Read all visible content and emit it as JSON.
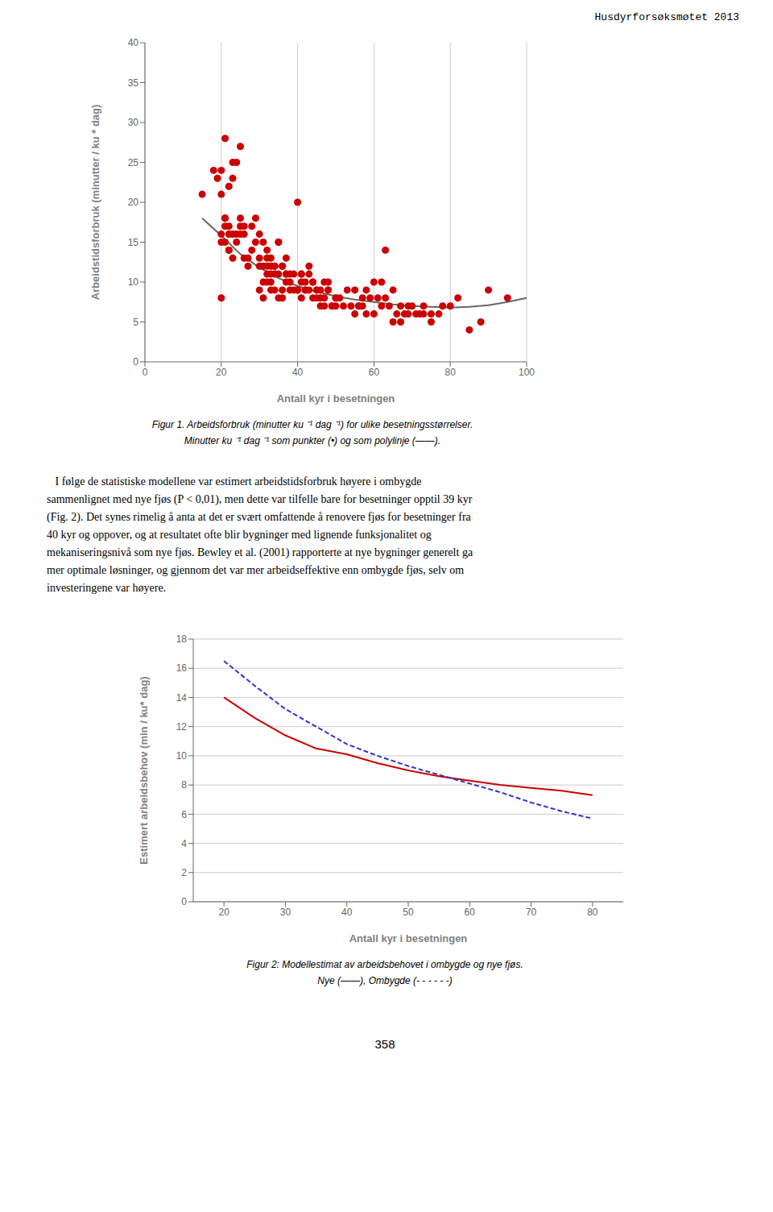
{
  "chart_data": [
    {
      "type": "scatter",
      "x_label": "Antall kyr i besetningen",
      "y_label": "Arbeidstidsforbruk  (minutter / ku * dag)",
      "xlim": [
        0,
        100
      ],
      "ylim": [
        0,
        40
      ],
      "xticks": [
        0,
        20,
        40,
        60,
        80,
        100
      ],
      "yticks": [
        0,
        5,
        10,
        15,
        20,
        25,
        30,
        35,
        40
      ],
      "grid": "x",
      "annotations": [
        "Husdyrforsøksmøtet 2013",
        "Figur 1. Arbeidsforbruk (minutter ku ⁻¹ dag ⁻¹) for ulike besetningsstørrelser.",
        "Minutter ku ⁻¹ dag ⁻¹ som punkter (•) og som polylinje (——).",
        "   I følge de statistiske modellene var estimert arbeidstidsforbruk høyere i ombygde",
        "sammenlignet med nye fjøs (P < 0,01), men dette var tilfelle bare for besetninger opptil 39 kyr",
        "(Fig. 2). Det synes rimelig å anta at det er svært omfattende å renovere fjøs for besetninger fra",
        "40 kyr og oppover, og at resultatet ofte blir bygninger med lignende funksjonalitet og",
        "mekaniseringsnivå som nye fjøs. Bewley et al. (2001) rapporterte at nye bygninger generelt ga",
        "mer optimale løsninger, og gjennom det var mer arbeidseffektive enn ombygde fjøs, selv om",
        "investeringene var høyere."
      ],
      "series": [
        {
          "type": "scatter",
          "marker": "o",
          "color": "#cc0000",
          "x": [
            15,
            18,
            19,
            20,
            20,
            20,
            20,
            21,
            21,
            21,
            22,
            22,
            22,
            23,
            23,
            23,
            24,
            25,
            25,
            26,
            20,
            21,
            21,
            22,
            22,
            22,
            23,
            23,
            24,
            24,
            25,
            25,
            26,
            26,
            27,
            27,
            28,
            28,
            29,
            29,
            30,
            30,
            30,
            31,
            31,
            32,
            32,
            32,
            33,
            33,
            33,
            34,
            34,
            35,
            35,
            36,
            36,
            37,
            37,
            38,
            30,
            31,
            31,
            32,
            32,
            33,
            33,
            34,
            34,
            35,
            35,
            36,
            36,
            37,
            37,
            38,
            38,
            39,
            39,
            40,
            40,
            41,
            41,
            42,
            42,
            43,
            43,
            44,
            44,
            45,
            45,
            46,
            46,
            47,
            47,
            48,
            48,
            49,
            50,
            50,
            40,
            41,
            41,
            42,
            43,
            44,
            45,
            46,
            47,
            48,
            49,
            50,
            51,
            52,
            53,
            54,
            55,
            56,
            57,
            58,
            55,
            56,
            57,
            58,
            59,
            60,
            61,
            62,
            63,
            64,
            65,
            66,
            67,
            68,
            69,
            70,
            72,
            73,
            75,
            77,
            60,
            62,
            63,
            65,
            67,
            69,
            71,
            73,
            75,
            78,
            80,
            82,
            85,
            88,
            90,
            95
          ],
          "values": [
            21,
            24,
            23,
            24,
            16,
            15,
            21,
            17,
            18,
            28,
            17,
            16,
            22,
            23,
            25,
            16,
            25,
            27,
            16,
            17,
            8,
            18,
            15,
            14,
            16,
            14,
            13,
            16,
            16,
            15,
            17,
            18,
            13,
            16,
            13,
            12,
            14,
            17,
            15,
            18,
            12,
            9,
            13,
            15,
            8,
            12,
            14,
            10,
            9,
            13,
            11,
            12,
            11,
            15,
            8,
            9,
            12,
            11,
            13,
            11,
            16,
            10,
            12,
            11,
            13,
            12,
            10,
            12,
            9,
            11,
            15,
            12,
            8,
            11,
            10,
            10,
            9,
            9,
            11,
            20,
            9,
            11,
            10,
            10,
            9,
            11,
            12,
            10,
            8,
            9,
            8,
            7,
            9,
            10,
            8,
            9,
            10,
            7,
            8,
            7,
            9,
            8,
            11,
            9,
            9,
            10,
            9,
            8,
            7,
            9,
            7,
            8,
            8,
            7,
            9,
            7,
            6,
            7,
            8,
            6,
            9,
            7,
            7,
            9,
            8,
            6,
            8,
            7,
            8,
            7,
            5,
            6,
            7,
            6,
            7,
            7,
            6,
            6,
            6,
            6,
            10,
            10,
            14,
            9,
            5,
            6,
            6,
            7,
            5,
            7,
            7,
            8,
            4,
            5,
            9,
            8
          ]
        },
        {
          "type": "line",
          "line_style": "solid",
          "color": "#666666",
          "x": [
            15,
            20,
            25,
            30,
            35,
            40,
            45,
            50,
            55,
            60,
            65,
            70,
            75,
            80,
            85,
            90,
            95,
            100
          ],
          "values": [
            18.0,
            15.8,
            13.5,
            11.8,
            10.5,
            9.5,
            8.8,
            8.2,
            7.8,
            7.5,
            7.2,
            7.0,
            6.9,
            6.8,
            6.9,
            7.1,
            7.5,
            8.0
          ]
        }
      ]
    },
    {
      "type": "line",
      "x_label": "Antall kyr i besetningen",
      "y_label": "Estimert arbeidsbehov (min / ku* dag)",
      "xlim": [
        15,
        85
      ],
      "ylim": [
        0,
        18
      ],
      "xticks": [
        20,
        30,
        40,
        50,
        60,
        70,
        80
      ],
      "yticks": [
        0,
        2,
        4,
        6,
        8,
        10,
        12,
        14,
        16,
        18
      ],
      "grid": "y",
      "annotations": [
        "Figur 2: Modellestimat av arbeidsbehovet i ombygde og nye fjøs.",
        "Nye (——), Ombygde (- - - - - -)",
        "358"
      ],
      "series": [
        {
          "type": "line",
          "line_style": "solid",
          "color": "#cc0000",
          "x": [
            20,
            25,
            30,
            35,
            40,
            45,
            50,
            55,
            60,
            65,
            70,
            75,
            80
          ],
          "values": [
            14.0,
            12.6,
            11.4,
            10.5,
            10.1,
            9.5,
            9.0,
            8.6,
            8.3,
            8.0,
            7.8,
            7.6,
            7.3
          ]
        },
        {
          "type": "line",
          "line_style": "dashed",
          "color": "#3333cc",
          "x": [
            20,
            25,
            30,
            35,
            40,
            45,
            50,
            55,
            60,
            65,
            70,
            75,
            80
          ],
          "values": [
            16.5,
            14.8,
            13.2,
            12.0,
            10.8,
            10.0,
            9.3,
            8.7,
            8.1,
            7.5,
            6.8,
            6.2,
            5.7
          ]
        }
      ]
    }
  ]
}
